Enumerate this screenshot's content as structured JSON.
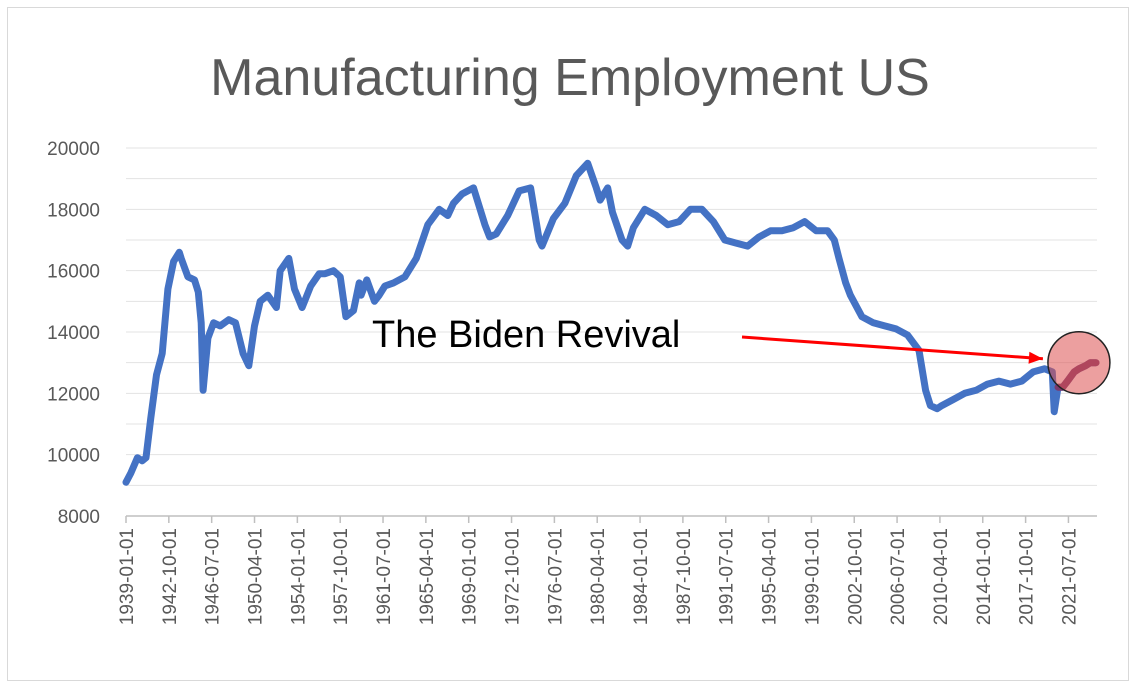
{
  "chart_data": {
    "type": "line",
    "title": "Manufacturing Employment US",
    "xlabel": "",
    "ylabel": "",
    "ylim": [
      8000,
      20000
    ],
    "yticks": [
      8000,
      10000,
      12000,
      14000,
      16000,
      18000,
      20000
    ],
    "xlim": [
      "1939-01-01",
      "2024-01-01"
    ],
    "xticks": [
      "1939-01-01",
      "1942-10-01",
      "1946-07-01",
      "1950-04-01",
      "1954-01-01",
      "1957-10-01",
      "1961-07-01",
      "1965-04-01",
      "1969-01-01",
      "1972-10-01",
      "1976-07-01",
      "1980-04-01",
      "1984-01-01",
      "1987-10-01",
      "1991-07-01",
      "1995-04-01",
      "1999-01-01",
      "2002-10-01",
      "2006-07-01",
      "2010-04-01",
      "2014-01-01",
      "2017-10-01",
      "2021-07-01"
    ],
    "grid": true,
    "legend": "none",
    "series_color": "#4472C4",
    "highlight_color": "#7a3a6e",
    "series": [
      {
        "x": [
          "1939-01-01",
          "1939-06-01",
          "1940-01-01",
          "1940-06-01",
          "1940-10-01",
          "1941-03-01",
          "1941-09-01",
          "1942-03-01",
          "1942-09-01",
          "1943-03-01",
          "1943-09-01",
          "1943-11-01",
          "1944-06-01",
          "1945-01-01",
          "1945-05-01",
          "1945-08-01",
          "1945-10-01",
          "1946-03-01",
          "1946-09-01",
          "1947-04-01",
          "1948-01-01",
          "1948-08-01",
          "1949-04-01",
          "1949-10-01",
          "1950-04-01",
          "1950-10-01",
          "1951-06-01",
          "1952-03-01",
          "1952-07-01",
          "1953-04-01",
          "1953-10-01",
          "1954-06-01",
          "1955-03-01",
          "1955-12-01",
          "1956-06-01",
          "1957-03-01",
          "1957-10-01",
          "1958-04-01",
          "1958-12-01",
          "1959-06-01",
          "1959-08-01",
          "1960-02-01",
          "1960-10-01",
          "1961-03-01",
          "1961-09-01",
          "1962-06-01",
          "1963-06-01",
          "1964-06-01",
          "1965-06-01",
          "1966-06-01",
          "1967-03-01",
          "1967-09-01",
          "1968-06-01",
          "1969-06-01",
          "1970-06-01",
          "1970-11-01",
          "1971-06-01",
          "1972-06-01",
          "1973-06-01",
          "1974-06-01",
          "1975-03-01",
          "1975-06-01",
          "1976-06-01",
          "1977-06-01",
          "1978-06-01",
          "1979-06-01",
          "1980-03-01",
          "1980-07-01",
          "1981-03-01",
          "1981-08-01",
          "1982-06-01",
          "1982-12-01",
          "1983-06-01",
          "1984-06-01",
          "1985-06-01",
          "1986-06-01",
          "1987-06-01",
          "1988-06-01",
          "1989-06-01",
          "1990-06-01",
          "1991-06-01",
          "1992-06-01",
          "1993-06-01",
          "1994-06-01",
          "1995-06-01",
          "1996-06-01",
          "1997-06-01",
          "1998-06-01",
          "1999-06-01",
          "2000-06-01",
          "2001-01-01",
          "2001-06-01",
          "2002-01-01",
          "2002-06-01",
          "2003-06-01",
          "2004-06-01",
          "2005-06-01",
          "2006-06-01",
          "2007-06-01",
          "2008-06-01",
          "2009-01-01",
          "2009-06-01",
          "2010-01-01",
          "2010-06-01",
          "2011-06-01",
          "2012-06-01",
          "2013-06-01",
          "2014-06-01",
          "2015-06-01",
          "2016-06-01",
          "2017-06-01",
          "2018-06-01",
          "2019-06-01",
          "2020-02-01",
          "2020-04-01",
          "2020-08-01",
          "2021-01-01",
          "2021-06-01",
          "2022-01-01",
          "2022-06-01",
          "2023-01-01",
          "2023-06-01",
          "2023-12-01"
        ],
        "values": [
          9100,
          9400,
          9900,
          9800,
          9900,
          11200,
          12600,
          13300,
          15400,
          16300,
          16600,
          16400,
          15800,
          15700,
          15300,
          14300,
          12100,
          13800,
          14300,
          14200,
          14400,
          14300,
          13300,
          12900,
          14200,
          15000,
          15200,
          14800,
          16000,
          16400,
          15400,
          14800,
          15500,
          15900,
          15900,
          16000,
          15800,
          14500,
          14700,
          15600,
          15200,
          15700,
          15000,
          15200,
          15500,
          15600,
          15800,
          16400,
          17500,
          18000,
          17800,
          18200,
          18500,
          18700,
          17500,
          17100,
          17200,
          17800,
          18600,
          18700,
          17000,
          16800,
          17700,
          18200,
          19100,
          19500,
          18700,
          18300,
          18700,
          17900,
          17000,
          16800,
          17400,
          18000,
          17800,
          17500,
          17600,
          18000,
          18000,
          17600,
          17000,
          16900,
          16800,
          17100,
          17300,
          17300,
          17400,
          17600,
          17300,
          17300,
          17000,
          16400,
          15600,
          15200,
          14500,
          14300,
          14200,
          14100,
          13900,
          13400,
          12100,
          11600,
          11500,
          11600,
          11800,
          12000,
          12100,
          12300,
          12400,
          12300,
          12400,
          12700,
          12800,
          12700,
          11400,
          12200,
          12200,
          12400,
          12700,
          12800,
          12900,
          13000,
          13000
        ]
      }
    ],
    "annotation": {
      "text": "The Biden Revival",
      "target_x": "2022-06-01",
      "target_y": 12900
    }
  }
}
